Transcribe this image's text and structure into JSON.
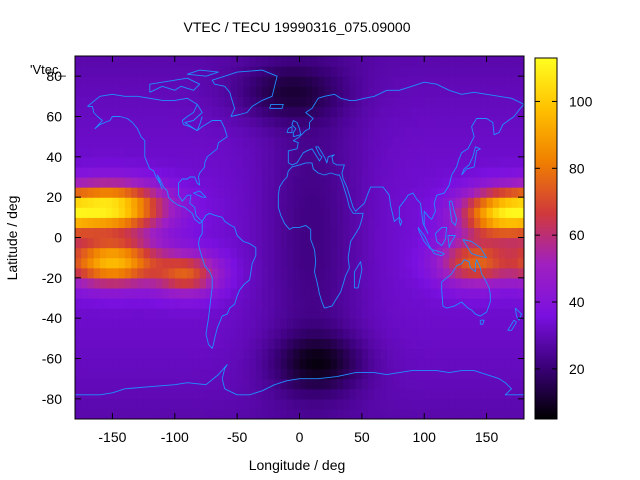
{
  "chart_data": {
    "type": "heatmap",
    "title": "VTEC / TECU 19990316_075.09000",
    "xlabel": "Longitude / deg",
    "ylabel": "Latitude / deg",
    "key_label": "'Vtec_",
    "xlim": [
      -180,
      180
    ],
    "ylim": [
      -90,
      90
    ],
    "x_ticks": [
      -150,
      -100,
      -50,
      0,
      50,
      100,
      150
    ],
    "y_ticks": [
      -80,
      -60,
      -40,
      -20,
      0,
      20,
      40,
      60,
      80
    ],
    "colorbar": {
      "range": [
        5,
        113
      ],
      "ticks": [
        20,
        40,
        60,
        80,
        100
      ],
      "colormap": "gnuplot-pm3d",
      "stops": [
        "#000000",
        "#3a0078",
        "#7a10e0",
        "#a020c0",
        "#d03a3a",
        "#f08000",
        "#ffc000",
        "#ffff20"
      ]
    },
    "tec_features": [
      {
        "type": "crest",
        "lon": -150,
        "lat": 15,
        "sigma_lon": 28,
        "sigma_lat": 8,
        "amplitude": 72
      },
      {
        "type": "crest",
        "lon": -150,
        "lat": -12,
        "sigma_lon": 26,
        "sigma_lat": 8,
        "amplitude": 62
      },
      {
        "type": "crest",
        "lon": 160,
        "lat": 12,
        "sigma_lon": 22,
        "sigma_lat": 8,
        "amplitude": 58
      },
      {
        "type": "crest",
        "lon": 140,
        "lat": -12,
        "sigma_lon": 20,
        "sigma_lat": 8,
        "amplitude": 40
      },
      {
        "type": "crest",
        "lon": -90,
        "lat": -18,
        "sigma_lon": 18,
        "sigma_lat": 7,
        "amplitude": 38
      },
      {
        "type": "trough",
        "lon": 10,
        "lat": 0,
        "sigma_lon": 30,
        "sigma_lat": 55,
        "amplitude": -12
      },
      {
        "type": "trough",
        "lon": 15,
        "lat": -62,
        "sigma_lon": 25,
        "sigma_lat": 10,
        "amplitude": -18
      },
      {
        "type": "trough",
        "lon": -10,
        "lat": 72,
        "sigma_lon": 30,
        "sigma_lat": 10,
        "amplitude": -14
      }
    ],
    "coastline_color": "#1e90ff"
  }
}
